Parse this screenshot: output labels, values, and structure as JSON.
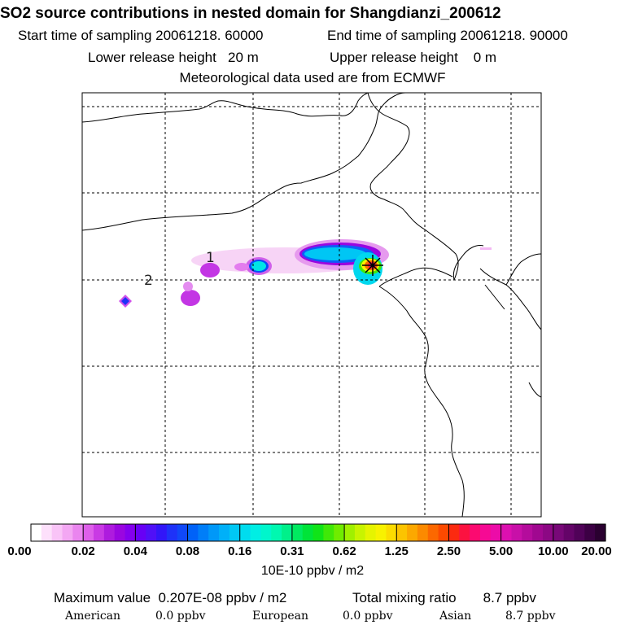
{
  "header": {
    "title": "SO2 source contributions in nested domain for Shangdianzi_200612",
    "start_label": "Start time of sampling",
    "start_value": "20061218. 60000",
    "end_label": "End time of sampling",
    "end_value": "20061218. 90000",
    "lower_label": "Lower release height",
    "lower_value": "20 m",
    "upper_label": "Upper release height",
    "upper_value": "0 m",
    "met_line": "Meteorological data used are from ECMWF"
  },
  "map": {
    "labels": [
      "1",
      "2"
    ]
  },
  "colorbar": {
    "tick_labels": [
      "0.00",
      "0.02",
      "0.04",
      "0.08",
      "0.16",
      "0.31",
      "0.62",
      "1.25",
      "2.50",
      "5.00",
      "10.00",
      "20.00"
    ],
    "colors": [
      "#ffffff",
      "#fde0fb",
      "#f9c4f7",
      "#f3a7f3",
      "#ea85ef",
      "#de5fea",
      "#c93ae4",
      "#ae1bde",
      "#9a06e0",
      "#8400ee",
      "#6800f5",
      "#5010f7",
      "#3216f8",
      "#1e32f8",
      "#1048f8",
      "#0062f8",
      "#007ef8",
      "#0098f8",
      "#00b0f8",
      "#00c8f4",
      "#00dcee",
      "#00eee4",
      "#00f6cc",
      "#00f8b0",
      "#00f08a",
      "#00ea60",
      "#00e438",
      "#10e418",
      "#40e808",
      "#70ec00",
      "#a0f000",
      "#c8f400",
      "#e6f400",
      "#f8f200",
      "#fcdc00",
      "#fcc400",
      "#fca800",
      "#fc8a00",
      "#fc6800",
      "#fc4a00",
      "#fc2a10",
      "#fc1240",
      "#fc0a70",
      "#f60a94",
      "#ec0ca8",
      "#dc10b0",
      "#c810a8",
      "#b40c9c",
      "#a00890",
      "#8c0884",
      "#780878",
      "#640468",
      "#500258",
      "#3c0044",
      "#2a0030"
    ],
    "unit": "10E-10 ppbv / m2"
  },
  "footer": {
    "max_label": "Maximum value",
    "max_value": "0.207E-08 ppbv / m2",
    "total_label": "Total mixing ratio",
    "total_value": "8.7 ppbv",
    "sources": [
      {
        "name": "American",
        "value": "0.0 ppbv"
      },
      {
        "name": "European",
        "value": "0.0 ppbv"
      },
      {
        "name": "Asian",
        "value": "8.7 ppbv"
      }
    ]
  }
}
